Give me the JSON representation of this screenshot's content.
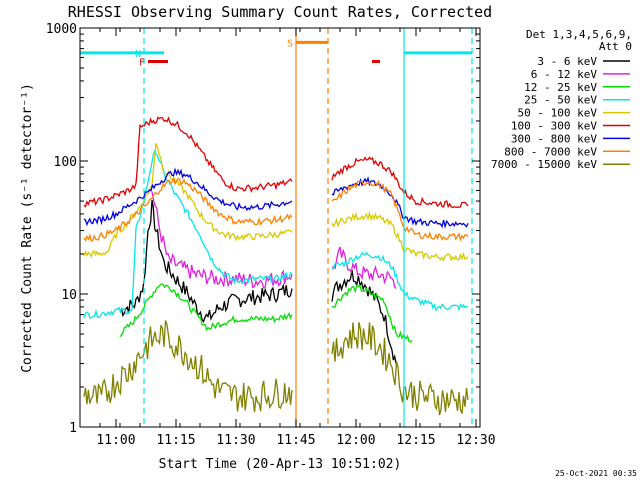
{
  "chart_data": {
    "type": "line",
    "title": "RHESSI Observing Summary Count Rates, Corrected",
    "xlabel": "Start Time (20-Apr-13 10:51:02)",
    "ylabel": "Corrected Count Rate (s⁻¹ detector⁻¹)",
    "ylog": true,
    "ylim": [
      1,
      1000
    ],
    "y_ticks": [
      1,
      10,
      100,
      1000
    ],
    "y_tick_labels": [
      "1",
      "10",
      "100",
      "1000"
    ],
    "xlim": [
      "10:51:02",
      "12:31:02"
    ],
    "x_ticks": [
      "11:00",
      "11:15",
      "11:30",
      "11:45",
      "12:00",
      "12:15",
      "12:30"
    ],
    "legend": {
      "header": [
        "Det 1,3,4,5,6,9,",
        "Att 0"
      ],
      "placement": "right",
      "entries": [
        {
          "label": "3 - 6 keV",
          "color": "#000000"
        },
        {
          "label": "6 - 12 keV",
          "color": "#e020e0"
        },
        {
          "label": "12 - 25 keV",
          "color": "#00e000"
        },
        {
          "label": "25 - 50 keV",
          "color": "#00e8e8"
        },
        {
          "label": "50 - 100 keV",
          "color": "#d8c800"
        },
        {
          "label": "100 - 300 keV",
          "color": "#e00000"
        },
        {
          "label": "300 - 800 keV",
          "color": "#0000e0"
        },
        {
          "label": "800 - 7000 keV",
          "color": "#ff8000"
        },
        {
          "label": "7000 - 15000 keV",
          "color": "#808000"
        }
      ]
    },
    "data_gap": [
      "11:45",
      "11:53"
    ],
    "series": [
      {
        "name": "3 - 6 keV",
        "color": "#000000",
        "points": [
          [
            "11:01",
            7.5
          ],
          [
            "11:05",
            8.5
          ],
          [
            "11:07",
            12
          ],
          [
            "11:08",
            30
          ],
          [
            "11:09",
            45
          ],
          [
            "11:10",
            30
          ],
          [
            "11:12",
            17
          ],
          [
            "11:15",
            13
          ],
          [
            "11:18",
            10
          ],
          [
            "11:20",
            8
          ],
          [
            "11:23",
            6.5
          ],
          [
            "11:26",
            8
          ],
          [
            "11:30",
            9
          ],
          [
            "11:35",
            9.5
          ],
          [
            "11:40",
            10
          ],
          [
            "11:44",
            11
          ],
          null,
          [
            "11:54",
            10
          ],
          [
            "11:56",
            12
          ],
          [
            "11:59",
            14
          ],
          [
            "12:01",
            13
          ],
          [
            "12:03",
            11
          ],
          [
            "12:05",
            9
          ],
          [
            "12:07",
            7
          ],
          [
            "12:09",
            4
          ],
          [
            "12:10",
            3
          ]
        ]
      },
      {
        "name": "6 - 12 keV",
        "color": "#e020e0",
        "points": [
          [
            "11:09",
            60
          ],
          [
            "11:11",
            30
          ],
          [
            "11:13",
            18
          ],
          [
            "11:16",
            16
          ],
          [
            "11:20",
            14
          ],
          [
            "11:25",
            13
          ],
          [
            "11:30",
            13
          ],
          [
            "11:35",
            12.5
          ],
          [
            "11:40",
            13
          ],
          [
            "11:44",
            14
          ],
          null,
          [
            "11:54",
            15
          ],
          [
            "11:56",
            20
          ],
          [
            "11:58",
            17
          ],
          [
            "12:00",
            15
          ],
          [
            "12:03",
            14
          ],
          [
            "12:06",
            14
          ],
          [
            "12:09",
            13
          ],
          [
            "12:10",
            11
          ]
        ]
      },
      {
        "name": "12 - 25 keV",
        "color": "#00e000",
        "points": [
          [
            "11:01",
            5
          ],
          [
            "11:04",
            6
          ],
          [
            "11:07",
            8
          ],
          [
            "11:09",
            10
          ],
          [
            "11:11",
            12
          ],
          [
            "11:14",
            11
          ],
          [
            "11:17",
            9
          ],
          [
            "11:20",
            7
          ],
          [
            "11:23",
            5.5
          ],
          [
            "11:26",
            6
          ],
          [
            "11:30",
            6.5
          ],
          [
            "11:35",
            6.5
          ],
          [
            "11:40",
            6.5
          ],
          [
            "11:44",
            7
          ],
          null,
          [
            "11:54",
            8
          ],
          [
            "11:57",
            10
          ],
          [
            "11:59",
            11
          ],
          [
            "12:01",
            11
          ],
          [
            "12:04",
            10
          ],
          [
            "12:07",
            9
          ],
          [
            "12:10",
            5
          ],
          [
            "12:14",
            4.5
          ]
        ]
      },
      {
        "name": "25 - 50 keV",
        "color": "#00e8e8",
        "points": [
          [
            "10:52",
            7
          ],
          [
            "10:55",
            7
          ],
          [
            "11:00",
            7.5
          ],
          [
            "11:04",
            7.5
          ],
          [
            "11:05",
            30
          ],
          [
            "11:07",
            50
          ],
          [
            "11:09",
            100
          ],
          [
            "11:10",
            120
          ],
          [
            "11:12",
            80
          ],
          [
            "11:15",
            55
          ],
          [
            "11:18",
            40
          ],
          [
            "11:21",
            28
          ],
          [
            "11:24",
            18
          ],
          [
            "11:27",
            14
          ],
          [
            "11:30",
            12.5
          ],
          [
            "11:35",
            13
          ],
          [
            "11:40",
            13
          ],
          [
            "11:44",
            14
          ],
          null,
          [
            "11:54",
            16
          ],
          [
            "11:57",
            17
          ],
          [
            "12:00",
            19
          ],
          [
            "12:03",
            20
          ],
          [
            "12:06",
            19
          ],
          [
            "12:09",
            16
          ],
          [
            "12:12",
            10
          ],
          [
            "12:15",
            9
          ],
          [
            "12:20",
            8
          ],
          [
            "12:25",
            8
          ],
          [
            "12:28",
            8
          ]
        ]
      },
      {
        "name": "50 - 100 keV",
        "color": "#d8c800",
        "points": [
          [
            "10:52",
            20
          ],
          [
            "10:56",
            20
          ],
          [
            "10:58",
            21
          ],
          [
            "11:00",
            28
          ],
          [
            "11:03",
            35
          ],
          [
            "11:06",
            45
          ],
          [
            "11:09",
            65
          ],
          [
            "11:10",
            140
          ],
          [
            "11:12",
            85
          ],
          [
            "11:15",
            70
          ],
          [
            "11:18",
            55
          ],
          [
            "11:21",
            40
          ],
          [
            "11:24",
            32
          ],
          [
            "11:27",
            28
          ],
          [
            "11:30",
            27
          ],
          [
            "11:35",
            27
          ],
          [
            "11:40",
            28
          ],
          [
            "11:44",
            29
          ],
          null,
          [
            "11:54",
            33
          ],
          [
            "11:57",
            36
          ],
          [
            "12:00",
            38
          ],
          [
            "12:03",
            39
          ],
          [
            "12:06",
            37
          ],
          [
            "12:09",
            33
          ],
          [
            "12:12",
            22
          ],
          [
            "12:15",
            20
          ],
          [
            "12:20",
            19
          ],
          [
            "12:28",
            19
          ]
        ]
      },
      {
        "name": "100 - 300 keV",
        "color": "#e00000",
        "points": [
          [
            "10:52",
            48
          ],
          [
            "10:56",
            50
          ],
          [
            "11:00",
            55
          ],
          [
            "11:03",
            60
          ],
          [
            "11:05",
            65
          ],
          [
            "11:06",
            180
          ],
          [
            "11:09",
            200
          ],
          [
            "11:12",
            210
          ],
          [
            "11:15",
            190
          ],
          [
            "11:18",
            160
          ],
          [
            "11:21",
            120
          ],
          [
            "11:24",
            90
          ],
          [
            "11:27",
            70
          ],
          [
            "11:30",
            62
          ],
          [
            "11:35",
            63
          ],
          [
            "11:40",
            66
          ],
          [
            "11:44",
            70
          ],
          null,
          [
            "11:54",
            75
          ],
          [
            "11:57",
            88
          ],
          [
            "12:00",
            98
          ],
          [
            "12:03",
            102
          ],
          [
            "12:06",
            96
          ],
          [
            "12:09",
            82
          ],
          [
            "12:12",
            58
          ],
          [
            "12:15",
            50
          ],
          [
            "12:20",
            48
          ],
          [
            "12:28",
            46
          ]
        ]
      },
      {
        "name": "300 - 800 keV",
        "color": "#0000e0",
        "points": [
          [
            "10:52",
            35
          ],
          [
            "10:56",
            36
          ],
          [
            "11:00",
            40
          ],
          [
            "11:04",
            48
          ],
          [
            "11:08",
            58
          ],
          [
            "11:11",
            70
          ],
          [
            "11:14",
            82
          ],
          [
            "11:17",
            80
          ],
          [
            "11:20",
            70
          ],
          [
            "11:23",
            58
          ],
          [
            "11:26",
            50
          ],
          [
            "11:30",
            45
          ],
          [
            "11:35",
            45
          ],
          [
            "11:40",
            47
          ],
          [
            "11:44",
            50
          ],
          null,
          [
            "11:54",
            56
          ],
          [
            "11:57",
            63
          ],
          [
            "12:00",
            68
          ],
          [
            "12:03",
            70
          ],
          [
            "12:06",
            66
          ],
          [
            "12:09",
            56
          ],
          [
            "12:12",
            38
          ],
          [
            "12:15",
            35
          ],
          [
            "12:20",
            34
          ],
          [
            "12:28",
            34
          ]
        ]
      },
      {
        "name": "800 - 7000 keV",
        "color": "#ff8000",
        "points": [
          [
            "10:52",
            26
          ],
          [
            "10:56",
            27
          ],
          [
            "11:00",
            30
          ],
          [
            "11:04",
            37
          ],
          [
            "11:08",
            48
          ],
          [
            "11:11",
            62
          ],
          [
            "11:14",
            72
          ],
          [
            "11:17",
            70
          ],
          [
            "11:20",
            60
          ],
          [
            "11:23",
            48
          ],
          [
            "11:26",
            40
          ],
          [
            "11:30",
            35
          ],
          [
            "11:35",
            35
          ],
          [
            "11:40",
            36
          ],
          [
            "11:44",
            38
          ],
          null,
          [
            "11:54",
            48
          ],
          [
            "11:57",
            58
          ],
          [
            "12:00",
            66
          ],
          [
            "12:03",
            70
          ],
          [
            "12:06",
            66
          ],
          [
            "12:09",
            55
          ],
          [
            "12:12",
            32
          ],
          [
            "12:15",
            28
          ],
          [
            "12:20",
            27
          ],
          [
            "12:28",
            27
          ]
        ]
      },
      {
        "name": "7000 - 15000 keV",
        "color": "#808000",
        "points": [
          [
            "10:52",
            1.8
          ],
          [
            "10:56",
            1.6
          ],
          [
            "11:00",
            2.2
          ],
          [
            "11:03",
            2.6
          ],
          [
            "11:06",
            3.5
          ],
          [
            "11:09",
            4.5
          ],
          [
            "11:12",
            5
          ],
          [
            "11:15",
            4.2
          ],
          [
            "11:18",
            3.5
          ],
          [
            "11:21",
            2.8
          ],
          [
            "11:24",
            2.1
          ],
          [
            "11:27",
            1.8
          ],
          [
            "11:30",
            1.7
          ],
          [
            "11:35",
            1.7
          ],
          [
            "11:40",
            1.8
          ],
          [
            "11:44",
            1.9
          ],
          null,
          [
            "11:54",
            3.2
          ],
          [
            "11:57",
            4.5
          ],
          [
            "12:00",
            5
          ],
          [
            "12:03",
            4.8
          ],
          [
            "12:06",
            4
          ],
          [
            "12:09",
            3
          ],
          [
            "12:12",
            1.9
          ],
          [
            "12:16",
            1.7
          ],
          [
            "12:22",
            1.6
          ],
          [
            "12:28",
            1.6
          ]
        ]
      }
    ],
    "flag_bars": [
      {
        "label": "",
        "color": "#00e8e8",
        "start": "10:51",
        "end": "11:07",
        "level": 650
      },
      {
        "label": "N",
        "color": "#00e8e8",
        "start": "11:07",
        "end": "11:12",
        "level": 650
      },
      {
        "label": "F",
        "color": "#e00000",
        "start": "11:08",
        "end": "11:13",
        "level": 560
      },
      {
        "label": "S",
        "color": "#ff8000",
        "start": "11:45",
        "end": "11:53",
        "level": 780
      },
      {
        "label": "",
        "color": "#e00000",
        "start": "12:04",
        "end": "12:06",
        "level": 560
      },
      {
        "label": "",
        "color": "#00e8e8",
        "start": "12:12",
        "end": "12:29",
        "level": 650
      }
    ],
    "vertical_lines": [
      {
        "time": "11:07",
        "color": "#00e8e8",
        "style": "dashed"
      },
      {
        "time": "11:45",
        "color": "#ff8000",
        "style": "solid"
      },
      {
        "time": "11:53",
        "color": "#ff8000",
        "style": "dashed"
      },
      {
        "time": "12:12",
        "color": "#00e8e8",
        "style": "solid"
      },
      {
        "time": "12:29",
        "color": "#00e8e8",
        "style": "dashed"
      }
    ],
    "timestamp": "25-Oct-2021 00:35"
  }
}
